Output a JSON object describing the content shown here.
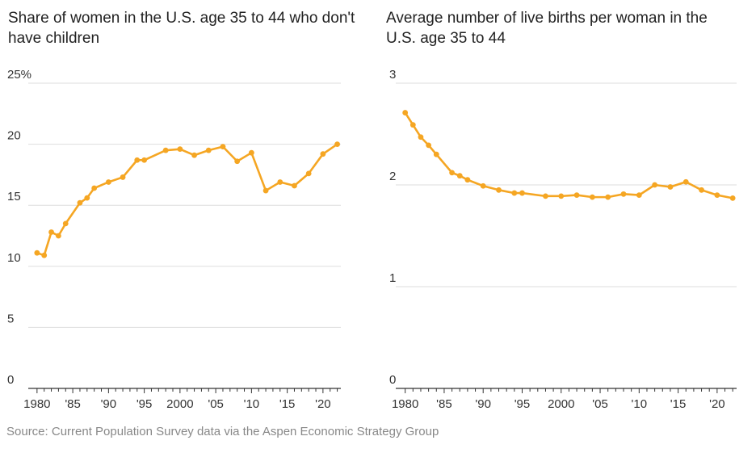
{
  "colors": {
    "line": "#f5a623",
    "grid": "#dddddd",
    "axis": "#333333",
    "text": "#333333",
    "source": "#888888"
  },
  "source_text": "Source: Current Population Survey data via the Aspen Economic Strategy Group",
  "chart_data": [
    {
      "type": "line",
      "title": "Share of women in the U.S. age 35 to 44 who don't have children",
      "xlabel": "",
      "ylabel": "",
      "xlim": [
        1979,
        2022.5
      ],
      "ylim": [
        0,
        25
      ],
      "grid": true,
      "y_ticks": [
        0,
        5,
        10,
        15,
        20,
        25
      ],
      "y_tick_labels": [
        "0",
        "5",
        "10",
        "15",
        "20",
        "25%"
      ],
      "x_ticks": [
        1980,
        1985,
        1990,
        1995,
        2000,
        2005,
        2010,
        2015,
        2020
      ],
      "x_tick_labels": [
        "1980",
        "'85",
        "'90",
        "'95",
        "2000",
        "'05",
        "'10",
        "'15",
        "'20"
      ],
      "series": [
        {
          "x": [
            1980,
            1981,
            1982,
            1983,
            1984,
            1986,
            1987,
            1988,
            1990,
            1992,
            1994,
            1995,
            1998,
            2000,
            2002,
            2004,
            2006,
            2008,
            2010,
            2012,
            2014,
            2016,
            2018,
            2020,
            2022
          ],
          "values": [
            11.1,
            10.9,
            12.8,
            12.5,
            13.5,
            15.2,
            15.6,
            16.4,
            16.9,
            17.3,
            18.7,
            18.7,
            19.5,
            19.6,
            19.1,
            19.5,
            19.8,
            18.6,
            19.3,
            16.2,
            16.9,
            16.6,
            17.6,
            19.2,
            20.0
          ]
        }
      ]
    },
    {
      "type": "line",
      "title": "Average number of live births per woman in the U.S. age 35 to 44",
      "xlabel": "",
      "ylabel": "",
      "xlim": [
        1979,
        2022.5
      ],
      "ylim": [
        0,
        3
      ],
      "grid": true,
      "y_ticks": [
        0,
        1,
        2,
        3
      ],
      "y_tick_labels": [
        "0",
        "1",
        "2",
        "3"
      ],
      "x_ticks": [
        1980,
        1985,
        1990,
        1995,
        2000,
        2005,
        2010,
        2015,
        2020
      ],
      "x_tick_labels": [
        "1980",
        "'85",
        "'90",
        "'95",
        "2000",
        "'05",
        "'10",
        "'15",
        "'20"
      ],
      "series": [
        {
          "x": [
            1980,
            1981,
            1982,
            1983,
            1984,
            1986,
            1987,
            1988,
            1990,
            1992,
            1994,
            1995,
            1998,
            2000,
            2002,
            2004,
            2006,
            2008,
            2010,
            2012,
            2014,
            2016,
            2018,
            2020,
            2022
          ],
          "values": [
            2.71,
            2.59,
            2.47,
            2.39,
            2.3,
            2.12,
            2.09,
            2.05,
            1.99,
            1.95,
            1.92,
            1.92,
            1.89,
            1.89,
            1.9,
            1.88,
            1.88,
            1.91,
            1.9,
            2.0,
            1.98,
            2.03,
            1.95,
            1.9,
            1.87
          ]
        }
      ]
    }
  ]
}
